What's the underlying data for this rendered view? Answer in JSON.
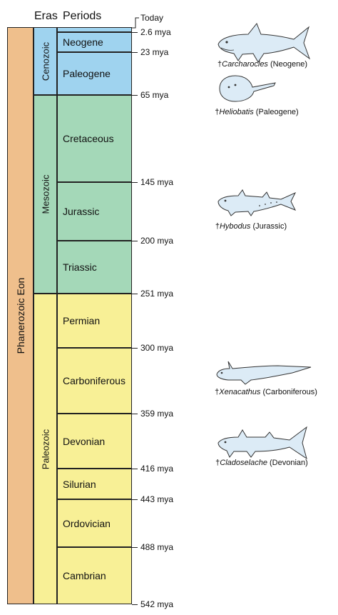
{
  "headers": {
    "eras": "Eras",
    "periods": "Periods"
  },
  "eon": {
    "label": "Phanerozoic Eon",
    "color": "#efbf8c"
  },
  "eras": [
    {
      "label": "Cenozoic",
      "color": "#9fd3ef"
    },
    {
      "label": "Mesozoic",
      "color": "#a4d8b8"
    },
    {
      "label": "Paleozoic",
      "color": "#f8f096"
    }
  ],
  "periods": [
    {
      "label": "Neogene"
    },
    {
      "label": "Paleogene"
    },
    {
      "label": "Cretaceous"
    },
    {
      "label": "Jurassic"
    },
    {
      "label": "Triassic"
    },
    {
      "label": "Permian"
    },
    {
      "label": "Carboniferous"
    },
    {
      "label": "Devonian"
    },
    {
      "label": "Silurian"
    },
    {
      "label": "Ordovician"
    },
    {
      "label": "Cambrian"
    }
  ],
  "boundaries": [
    "Today",
    "2.6 mya",
    "23 mya",
    "65 mya",
    "145 mya",
    "200 mya",
    "251 mya",
    "300 mya",
    "359 mya",
    "416 mya",
    "443 mya",
    "488 mya",
    "542 mya"
  ],
  "animals": [
    {
      "name": "Carcharocles",
      "period": "(Neogene)"
    },
    {
      "name": "Heliobatis",
      "period": "(Paleogene)"
    },
    {
      "name": "Hybodus",
      "period": "(Jurassic)"
    },
    {
      "name": "Xenacathus",
      "period": "(Carboniferous)"
    },
    {
      "name": "Cladoselache",
      "period": "(Devonian)"
    }
  ],
  "dagger": "†",
  "fish_color": "#dcebf6"
}
